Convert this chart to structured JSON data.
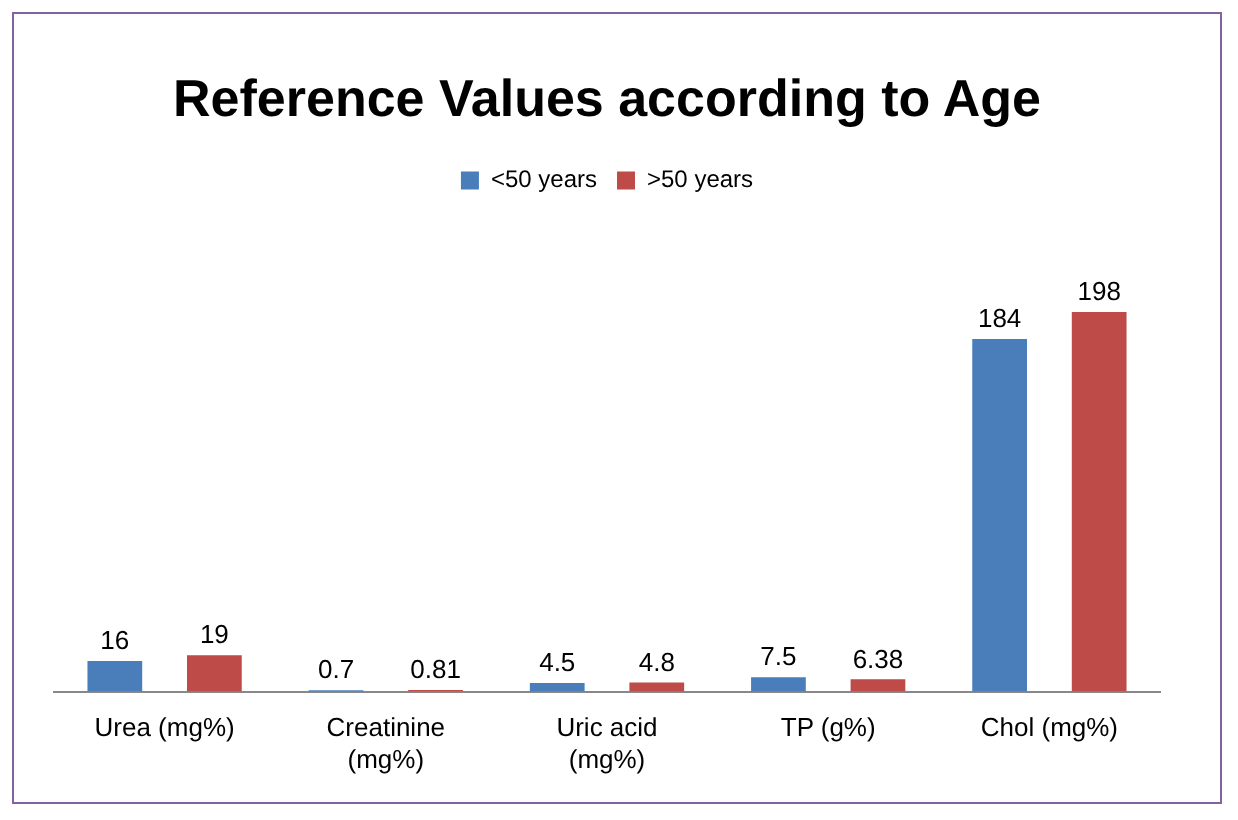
{
  "chart_data": {
    "type": "bar",
    "title": "Reference Values according to Age",
    "categories": [
      "Urea (mg%)",
      "Creatinine (mg%)",
      "Uric acid (mg%)",
      "TP (g%)",
      "Chol (mg%)"
    ],
    "series": [
      {
        "name": "<50 years",
        "color": "#4a7ebb",
        "values": [
          16,
          0.7,
          4.5,
          7.5,
          184
        ]
      },
      {
        "name": ">50 years",
        "color": "#be4b48",
        "values": [
          19,
          0.81,
          4.8,
          6.38,
          198
        ]
      }
    ],
    "data_labels": true,
    "legend": "top",
    "grid": false
  }
}
